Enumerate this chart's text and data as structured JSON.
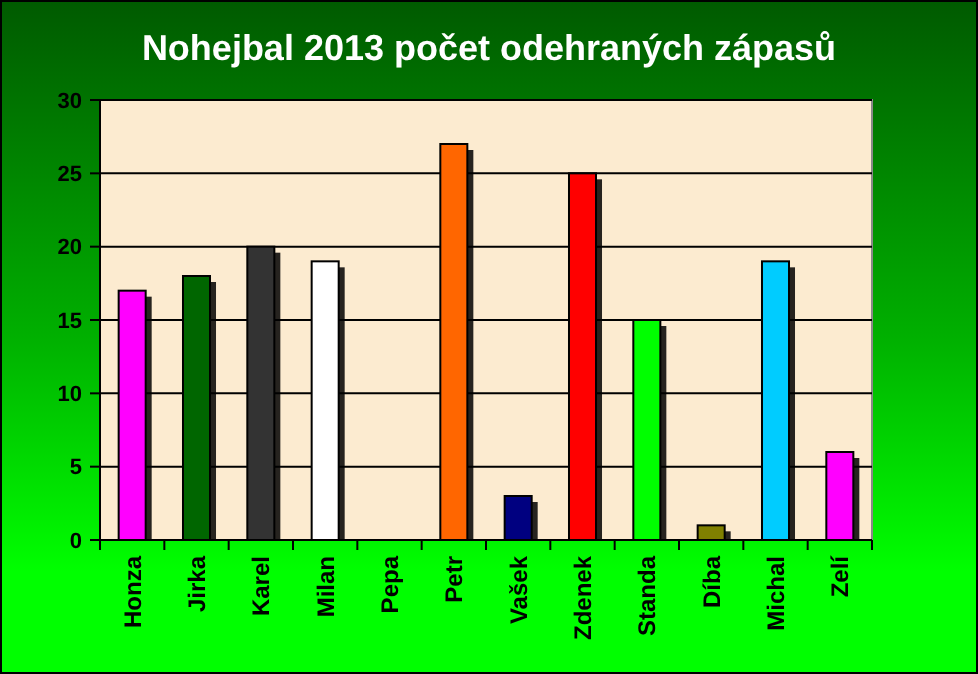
{
  "chart_data": {
    "type": "bar",
    "title": "Nohejbal 2013 počet odehraných zápasů",
    "categories": [
      "Honza",
      "Jirka",
      "Karel",
      "Milan",
      "Pepa",
      "Petr",
      "Vašek",
      "Zdenek",
      "Standa",
      "Díba",
      "Michal",
      "Zelí"
    ],
    "values": [
      17,
      18,
      20,
      19,
      0,
      27,
      3,
      25,
      15,
      1,
      19,
      6
    ],
    "colors": [
      "#ff00ff",
      "#006600",
      "#333333",
      "#ffffff",
      "#999999",
      "#ff6600",
      "#000080",
      "#ff0000",
      "#00ff00",
      "#808000",
      "#00ccff",
      "#ff00ff"
    ],
    "ylim": [
      0,
      30
    ],
    "yticks": [
      0,
      5,
      10,
      15,
      20,
      25,
      30
    ],
    "grid": "y"
  }
}
